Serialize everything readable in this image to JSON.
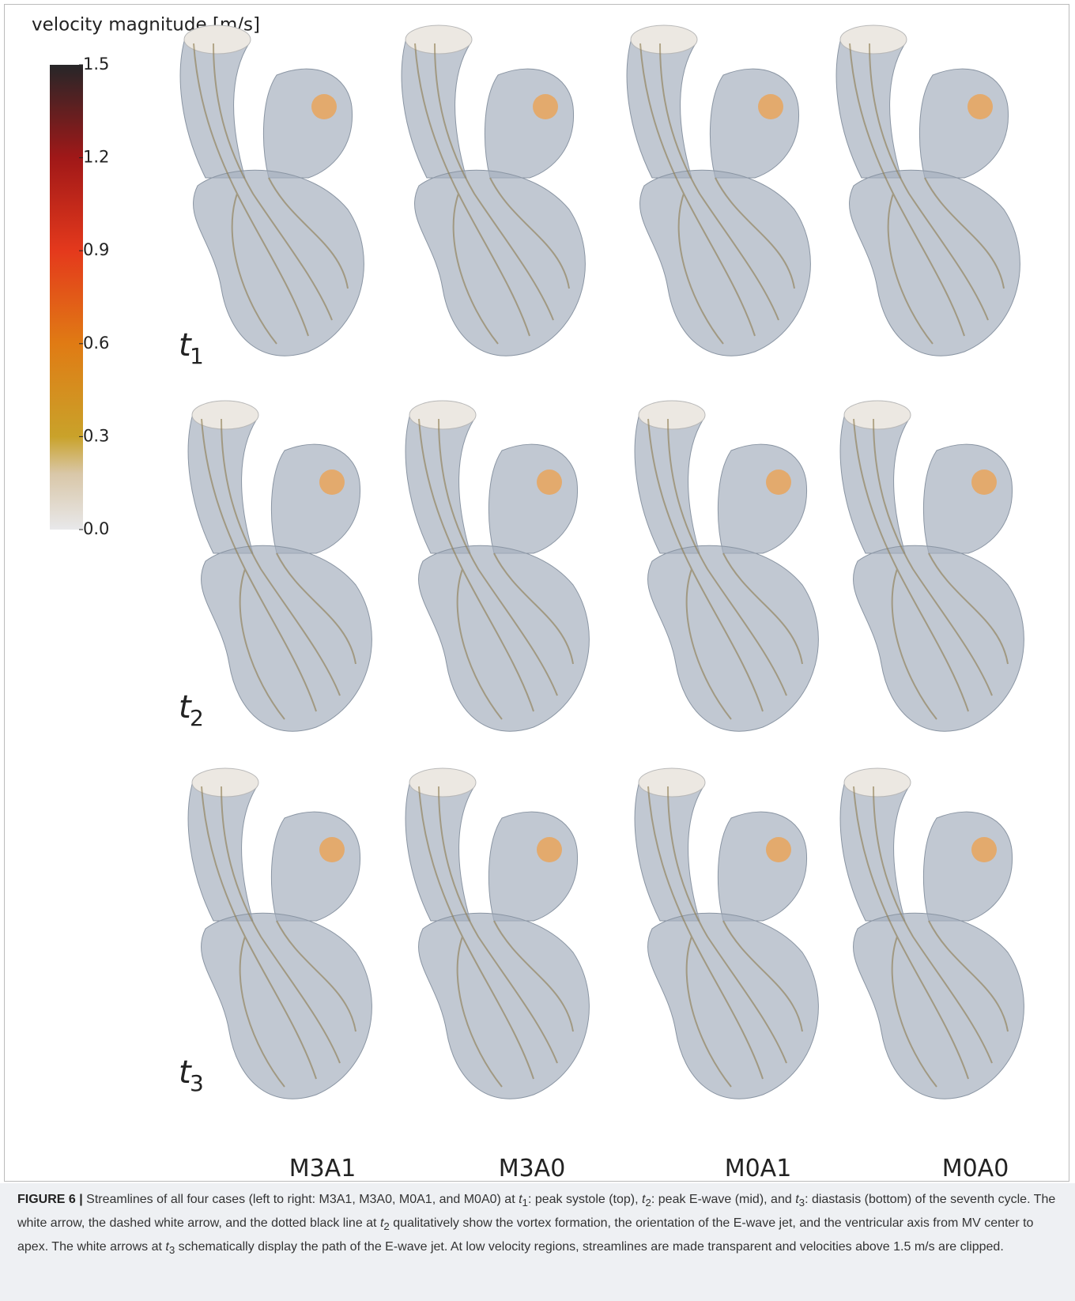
{
  "colorbar": {
    "label": "velocity magnitude [m/s]",
    "lim": [
      0,
      1.5
    ],
    "ticks": [
      {
        "value": 0,
        "label": "0.0"
      },
      0.3,
      0.6,
      0.9,
      1.2,
      1.5
    ]
  },
  "rows": [
    {
      "var": "t",
      "sub": "1"
    },
    {
      "var": "t",
      "sub": "2"
    },
    {
      "var": "t",
      "sub": "3"
    }
  ],
  "columns": [
    "M3A1",
    "M3A0",
    "M0A1",
    "M0A0"
  ],
  "caption": {
    "label": "FIGURE 6 |",
    "text": [
      "Streamlines of all four cases (left to right: M3A1, M3A0, M0A1, and M0A0) at ",
      ": peak systole (top), ",
      ": peak E-wave (mid), and ",
      ": diastasis (bottom) of the seventh cycle. The white arrow, the dashed white arrow, and the dotted black line at ",
      " qualitatively show the vortex formation, the orientation of the E-wave jet, and the ventricular axis from MV center to apex. The white arrows at ",
      " schematically display the path of the E-wave jet. At low velocity regions, streamlines are made transparent and velocities above 1.5 m/s are clipped."
    ],
    "vars": [
      {
        "var": "t",
        "sub": "1"
      },
      {
        "var": "t",
        "sub": "2"
      },
      {
        "var": "t",
        "sub": "3"
      },
      {
        "var": "t",
        "sub": "2"
      },
      {
        "var": "t",
        "sub": "3"
      }
    ]
  }
}
